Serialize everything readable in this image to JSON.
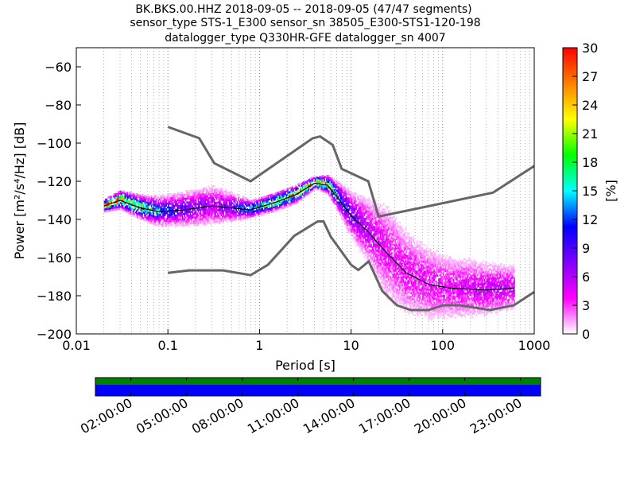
{
  "chart_data": {
    "type": "heatmap",
    "title_lines": [
      "BK.BKS.00.HHZ   2018-09-05 -- 2018-09-05  (47/47 segments)",
      "sensor_type STS-1_E300 sensor_sn 38505_E300-STS1-120-198",
      "datalogger_type Q330HR-GFE datalogger_sn 4007"
    ],
    "xlabel": "Period [s]",
    "ylabel": "Power [m²/s⁴/Hz] [dB]",
    "xscale": "log",
    "xlim": [
      0.01,
      1000
    ],
    "ylim": [
      -200,
      -50
    ],
    "xticks": [
      {
        "v": 0.01,
        "l": "0.01"
      },
      {
        "v": 0.1,
        "l": "0.1"
      },
      {
        "v": 1,
        "l": "1"
      },
      {
        "v": 10,
        "l": "10"
      },
      {
        "v": 100,
        "l": "100"
      },
      {
        "v": 1000,
        "l": "1000"
      }
    ],
    "yticks": [
      {
        "v": -60,
        "l": "−60"
      },
      {
        "v": -80,
        "l": "−80"
      },
      {
        "v": -100,
        "l": "−100"
      },
      {
        "v": -120,
        "l": "−120"
      },
      {
        "v": -140,
        "l": "−140"
      },
      {
        "v": -160,
        "l": "−160"
      },
      {
        "v": -180,
        "l": "−180"
      },
      {
        "v": -200,
        "l": "−200"
      }
    ],
    "grid": true,
    "nhnm": [
      [
        0.1,
        -91.5
      ],
      [
        0.22,
        -97.4
      ],
      [
        0.32,
        -110.5
      ],
      [
        0.8,
        -120
      ],
      [
        3.8,
        -97.5
      ],
      [
        4.6,
        -96.5
      ],
      [
        6.3,
        -101
      ],
      [
        7.9,
        -113.5
      ],
      [
        15.4,
        -120
      ],
      [
        20,
        -138.5
      ],
      [
        354,
        -126
      ],
      [
        1000,
        -112
      ]
    ],
    "nlnm": [
      [
        0.1,
        -168
      ],
      [
        0.17,
        -166.7
      ],
      [
        0.4,
        -166.7
      ],
      [
        0.8,
        -169.2
      ],
      [
        1.24,
        -163.7
      ],
      [
        2.4,
        -148.6
      ],
      [
        4.3,
        -141.1
      ],
      [
        5,
        -141
      ],
      [
        6,
        -149
      ],
      [
        10,
        -163.8
      ],
      [
        12,
        -166.5
      ],
      [
        15.6,
        -162
      ],
      [
        21.9,
        -177.5
      ],
      [
        31.6,
        -185
      ],
      [
        45,
        -187.5
      ],
      [
        70,
        -187.5
      ],
      [
        101,
        -185
      ],
      [
        154,
        -185
      ],
      [
        328,
        -187.5
      ],
      [
        600,
        -185
      ],
      [
        1000,
        -178
      ]
    ],
    "mean_curve": [
      [
        0.02,
        -133
      ],
      [
        0.03,
        -130
      ],
      [
        0.05,
        -134
      ],
      [
        0.08,
        -136
      ],
      [
        0.15,
        -135
      ],
      [
        0.3,
        -133
      ],
      [
        0.5,
        -134
      ],
      [
        0.8,
        -135
      ],
      [
        1.5,
        -131
      ],
      [
        2.5,
        -127
      ],
      [
        4,
        -121
      ],
      [
        5.5,
        -122
      ],
      [
        7,
        -128
      ],
      [
        10,
        -138
      ],
      [
        15,
        -146
      ],
      [
        25,
        -158
      ],
      [
        40,
        -168
      ],
      [
        70,
        -174
      ],
      [
        120,
        -176
      ],
      [
        300,
        -177
      ],
      [
        600,
        -176
      ]
    ],
    "psd_band": [
      [
        0.02,
        -133,
        2,
        30
      ],
      [
        0.03,
        -130,
        3,
        25
      ],
      [
        0.05,
        -134,
        4,
        18
      ],
      [
        0.08,
        -136,
        5,
        12
      ],
      [
        0.15,
        -135,
        6,
        8
      ],
      [
        0.3,
        -133,
        7,
        6
      ],
      [
        0.5,
        -134,
        5,
        8
      ],
      [
        0.8,
        -135,
        3,
        14
      ],
      [
        1.5,
        -131,
        3,
        20
      ],
      [
        2.5,
        -127,
        3,
        22
      ],
      [
        4,
        -121,
        2,
        27
      ],
      [
        5.5,
        -122,
        3,
        20
      ],
      [
        7,
        -128,
        5,
        12
      ],
      [
        10,
        -138,
        8,
        8
      ],
      [
        15,
        -146,
        12,
        5
      ],
      [
        25,
        -158,
        18,
        4
      ],
      [
        40,
        -168,
        16,
        4
      ],
      [
        70,
        -174,
        14,
        4
      ],
      [
        120,
        -176,
        12,
        4
      ],
      [
        300,
        -177,
        10,
        5
      ],
      [
        600,
        -176,
        8,
        5
      ]
    ],
    "colorbar": {
      "label": "[%]",
      "min": 0,
      "max": 30,
      "ticks": [
        "0",
        "3",
        "6",
        "9",
        "12",
        "15",
        "18",
        "21",
        "24",
        "27",
        "30"
      ],
      "colors": [
        "#ffffff",
        "#ff00ff",
        "#8000ff",
        "#0000ff",
        "#00ffff",
        "#00ff00",
        "#ffff00",
        "#ff8000",
        "#ff0000"
      ]
    },
    "timeline": {
      "labels": [
        "02:00:00",
        "05:00:00",
        "08:00:00",
        "11:00:00",
        "14:00:00",
        "17:00:00",
        "20:00:00",
        "23:00:00"
      ],
      "top_color": "#008000",
      "bottom_color": "#0000ff"
    },
    "model_color": "#666666"
  }
}
